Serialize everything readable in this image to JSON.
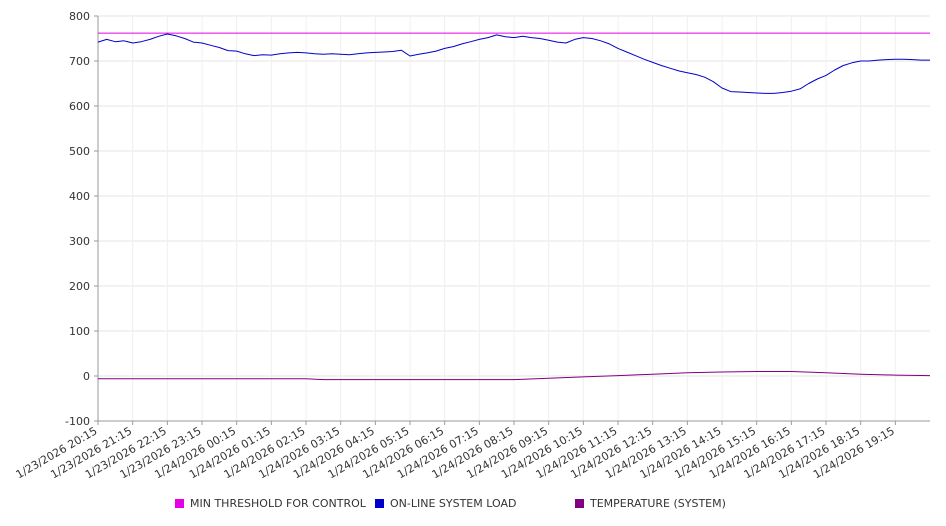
{
  "chart_data": {
    "type": "line",
    "title": "",
    "xlabel": "",
    "ylabel": "",
    "ylim": [
      -100,
      800
    ],
    "yticks": [
      800,
      700,
      600,
      500,
      400,
      300,
      200,
      100,
      0,
      -100
    ],
    "xlim": [
      "1/23/2026 20:15",
      "1/24/2026 20:15"
    ],
    "xtick_labels": [
      "1/23/2026 20:15",
      "1/23/2026 21:15",
      "1/23/2026 22:15",
      "1/23/2026 23:15",
      "1/24/2026 00:15",
      "1/24/2026 01:15",
      "1/24/2026 02:15",
      "1/24/2026 03:15",
      "1/24/2026 04:15",
      "1/24/2026 05:15",
      "1/24/2026 06:15",
      "1/24/2026 07:15",
      "1/24/2026 08:15",
      "1/24/2026 09:15",
      "1/24/2026 10:15",
      "1/24/2026 11:15",
      "1/24/2026 12:15",
      "1/24/2026 13:15",
      "1/24/2026 14:15",
      "1/24/2026 15:15",
      "1/24/2026 16:15",
      "1/24/2026 17:15",
      "1/24/2026 18:15",
      "1/24/2026 19:15"
    ],
    "grid": true,
    "legend_position": "bottom",
    "series": [
      {
        "name": "MIN THRESHOLD FOR CONTROL",
        "color": "#e600e6",
        "points": [
          [
            "1/23/2026 20:15",
            762
          ],
          [
            "1/24/2026 20:15",
            762
          ]
        ]
      },
      {
        "name": "ON-LINE SYSTEM LOAD",
        "color": "#0000cc",
        "points": [
          [
            "1/23/2026 20:15",
            742
          ],
          [
            "1/23/2026 20:30",
            748
          ],
          [
            "1/23/2026 20:45",
            743
          ],
          [
            "1/23/2026 21:00",
            745
          ],
          [
            "1/23/2026 21:15",
            740
          ],
          [
            "1/23/2026 21:30",
            743
          ],
          [
            "1/23/2026 21:45",
            748
          ],
          [
            "1/23/2026 22:00",
            755
          ],
          [
            "1/23/2026 22:15",
            760
          ],
          [
            "1/23/2026 22:30",
            756
          ],
          [
            "1/23/2026 22:45",
            750
          ],
          [
            "1/23/2026 23:00",
            742
          ],
          [
            "1/23/2026 23:15",
            740
          ],
          [
            "1/23/2026 23:30",
            735
          ],
          [
            "1/23/2026 23:45",
            730
          ],
          [
            "1/24/2026 00:00",
            723
          ],
          [
            "1/24/2026 00:15",
            722
          ],
          [
            "1/24/2026 00:30",
            716
          ],
          [
            "1/24/2026 00:45",
            712
          ],
          [
            "1/24/2026 01:00",
            714
          ],
          [
            "1/24/2026 01:15",
            713
          ],
          [
            "1/24/2026 01:30",
            716
          ],
          [
            "1/24/2026 01:45",
            718
          ],
          [
            "1/24/2026 02:00",
            719
          ],
          [
            "1/24/2026 02:15",
            718
          ],
          [
            "1/24/2026 02:30",
            716
          ],
          [
            "1/24/2026 02:45",
            715
          ],
          [
            "1/24/2026 03:00",
            716
          ],
          [
            "1/24/2026 03:15",
            715
          ],
          [
            "1/24/2026 03:30",
            714
          ],
          [
            "1/24/2026 03:45",
            716
          ],
          [
            "1/24/2026 04:00",
            718
          ],
          [
            "1/24/2026 04:15",
            719
          ],
          [
            "1/24/2026 04:30",
            720
          ],
          [
            "1/24/2026 04:45",
            721
          ],
          [
            "1/24/2026 05:00",
            724
          ],
          [
            "1/24/2026 05:15",
            711
          ],
          [
            "1/24/2026 05:30",
            715
          ],
          [
            "1/24/2026 05:45",
            718
          ],
          [
            "1/24/2026 06:00",
            722
          ],
          [
            "1/24/2026 06:15",
            728
          ],
          [
            "1/24/2026 06:30",
            732
          ],
          [
            "1/24/2026 06:45",
            738
          ],
          [
            "1/24/2026 07:00",
            743
          ],
          [
            "1/24/2026 07:15",
            748
          ],
          [
            "1/24/2026 07:30",
            752
          ],
          [
            "1/24/2026 07:45",
            758
          ],
          [
            "1/24/2026 08:00",
            754
          ],
          [
            "1/24/2026 08:15",
            752
          ],
          [
            "1/24/2026 08:30",
            755
          ],
          [
            "1/24/2026 08:45",
            752
          ],
          [
            "1/24/2026 09:00",
            750
          ],
          [
            "1/24/2026 09:15",
            746
          ],
          [
            "1/24/2026 09:30",
            742
          ],
          [
            "1/24/2026 09:45",
            740
          ],
          [
            "1/24/2026 10:00",
            748
          ],
          [
            "1/24/2026 10:15",
            752
          ],
          [
            "1/24/2026 10:30",
            750
          ],
          [
            "1/24/2026 10:45",
            745
          ],
          [
            "1/24/2026 11:00",
            738
          ],
          [
            "1/24/2026 11:15",
            728
          ],
          [
            "1/24/2026 11:30",
            720
          ],
          [
            "1/24/2026 11:45",
            712
          ],
          [
            "1/24/2026 12:00",
            704
          ],
          [
            "1/24/2026 12:15",
            697
          ],
          [
            "1/24/2026 12:30",
            690
          ],
          [
            "1/24/2026 12:45",
            684
          ],
          [
            "1/24/2026 13:00",
            678
          ],
          [
            "1/24/2026 13:15",
            674
          ],
          [
            "1/24/2026 13:30",
            670
          ],
          [
            "1/24/2026 13:45",
            664
          ],
          [
            "1/24/2026 14:00",
            654
          ],
          [
            "1/24/2026 14:15",
            640
          ],
          [
            "1/24/2026 14:30",
            632
          ],
          [
            "1/24/2026 14:45",
            631
          ],
          [
            "1/24/2026 15:00",
            630
          ],
          [
            "1/24/2026 15:15",
            629
          ],
          [
            "1/24/2026 15:30",
            628
          ],
          [
            "1/24/2026 15:45",
            628
          ],
          [
            "1/24/2026 16:00",
            630
          ],
          [
            "1/24/2026 16:15",
            633
          ],
          [
            "1/24/2026 16:30",
            638
          ],
          [
            "1/24/2026 16:45",
            650
          ],
          [
            "1/24/2026 17:00",
            660
          ],
          [
            "1/24/2026 17:15",
            668
          ],
          [
            "1/24/2026 17:30",
            680
          ],
          [
            "1/24/2026 17:45",
            690
          ],
          [
            "1/24/2026 18:00",
            696
          ],
          [
            "1/24/2026 18:15",
            700
          ],
          [
            "1/24/2026 18:30",
            700
          ],
          [
            "1/24/2026 18:45",
            702
          ],
          [
            "1/24/2026 19:00",
            703
          ],
          [
            "1/24/2026 19:15",
            704
          ],
          [
            "1/24/2026 19:30",
            704
          ],
          [
            "1/24/2026 19:45",
            703
          ],
          [
            "1/24/2026 20:00",
            702
          ],
          [
            "1/24/2026 20:15",
            702
          ]
        ]
      },
      {
        "name": "TEMPERATURE (SYSTEM)",
        "color": "#800080",
        "points": [
          [
            "1/23/2026 20:15",
            -6
          ],
          [
            "1/24/2026 02:15",
            -6
          ],
          [
            "1/24/2026 02:45",
            -8
          ],
          [
            "1/24/2026 08:15",
            -8
          ],
          [
            "1/24/2026 09:15",
            -5
          ],
          [
            "1/24/2026 10:15",
            -2
          ],
          [
            "1/24/2026 11:15",
            1
          ],
          [
            "1/24/2026 12:15",
            4
          ],
          [
            "1/24/2026 13:15",
            7
          ],
          [
            "1/24/2026 14:15",
            9
          ],
          [
            "1/24/2026 15:15",
            10
          ],
          [
            "1/24/2026 16:15",
            10
          ],
          [
            "1/24/2026 17:15",
            7
          ],
          [
            "1/24/2026 18:15",
            4
          ],
          [
            "1/24/2026 19:15",
            2
          ],
          [
            "1/24/2026 20:15",
            1
          ]
        ]
      }
    ]
  }
}
